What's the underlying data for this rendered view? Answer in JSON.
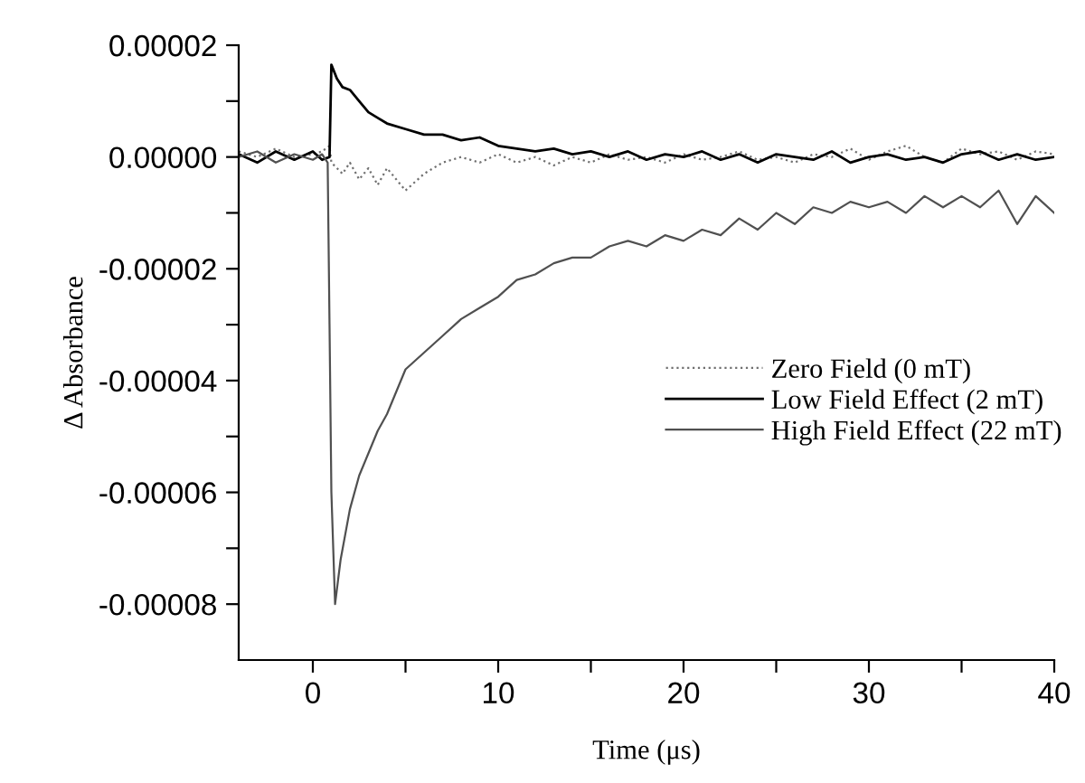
{
  "chart_data": {
    "type": "line",
    "xlabel": "Time (μs)",
    "ylabel": "Δ Absorbance",
    "xlim": [
      -4,
      40
    ],
    "ylim": [
      -9e-05,
      2e-05
    ],
    "xticks": [
      0,
      {
        "value": 5,
        "label": null
      },
      10,
      {
        "value": 15,
        "label": null
      },
      20,
      {
        "value": 25,
        "label": null
      },
      30,
      {
        "value": 35,
        "label": null
      },
      40
    ],
    "yticks": [
      {
        "value": -8e-05,
        "label": "-0.00008"
      },
      {
        "value": -7e-05,
        "label": null
      },
      {
        "value": -6e-05,
        "label": "-0.00006"
      },
      {
        "value": -5e-05,
        "label": null
      },
      {
        "value": -4e-05,
        "label": "-0.00004"
      },
      {
        "value": -3e-05,
        "label": null
      },
      {
        "value": -2e-05,
        "label": "-0.00002"
      },
      {
        "value": -1e-05,
        "label": null
      },
      {
        "value": 0,
        "label": "0.00000"
      },
      {
        "value": 1e-05,
        "label": null
      },
      {
        "value": 2e-05,
        "label": "0.00002"
      }
    ],
    "legend": "right",
    "grid": false,
    "series": [
      {
        "name": "Zero Field (0 mT)",
        "color": "#707070",
        "line_style": "dotted",
        "x": [
          -4,
          -3,
          -2,
          -1,
          0,
          0.5,
          0.9,
          1.0,
          1.3,
          1.6,
          2,
          2.5,
          3,
          3.5,
          4,
          5,
          6,
          7,
          8,
          9,
          10,
          11,
          12,
          13,
          14,
          15,
          16,
          17,
          18,
          19,
          20,
          21,
          22,
          23,
          24,
          25,
          26,
          27,
          28,
          29,
          30,
          31,
          32,
          33,
          34,
          35,
          36,
          37,
          38,
          39,
          40
        ],
        "values": [
          1e-06,
          0,
          1.5e-06,
          0,
          5e-07,
          1e-06,
          2e-06,
          -1e-06,
          -2e-06,
          -3e-06,
          -1e-06,
          -4e-06,
          -2e-06,
          -5e-06,
          -2e-06,
          -6e-06,
          -3e-06,
          -1e-06,
          0,
          -1e-06,
          5e-07,
          -1e-06,
          0,
          -1.5e-06,
          0,
          -1e-06,
          5e-07,
          -5e-07,
          0,
          -1e-06,
          5e-07,
          -5e-07,
          0,
          1e-06,
          -5e-07,
          0,
          -1e-06,
          5e-07,
          0,
          1.5e-06,
          -5e-07,
          1e-06,
          2e-06,
          0,
          -1e-06,
          1.5e-06,
          5e-07,
          1e-06,
          -5e-07,
          1e-06,
          5e-07
        ]
      },
      {
        "name": "Low Field Effect (2 mT)",
        "color": "#000000",
        "line_style": "solid",
        "x": [
          -4,
          -3,
          -2,
          -1,
          0,
          0.5,
          0.9,
          1.0,
          1.3,
          1.6,
          2,
          2.5,
          3,
          3.5,
          4,
          5,
          6,
          7,
          8,
          9,
          10,
          11,
          12,
          13,
          14,
          15,
          16,
          17,
          18,
          19,
          20,
          21,
          22,
          23,
          24,
          25,
          26,
          27,
          28,
          29,
          30,
          31,
          32,
          33,
          34,
          35,
          36,
          37,
          38,
          39,
          40
        ],
        "values": [
          5e-07,
          -1e-06,
          1e-06,
          -5e-07,
          1e-06,
          -5e-07,
          0,
          1.65e-05,
          1.4e-05,
          1.25e-05,
          1.2e-05,
          1e-05,
          8e-06,
          7e-06,
          6e-06,
          5e-06,
          4e-06,
          4e-06,
          3e-06,
          3.5e-06,
          2e-06,
          1.5e-06,
          1e-06,
          1.5e-06,
          5e-07,
          1e-06,
          0,
          1e-06,
          -5e-07,
          5e-07,
          0,
          1e-06,
          -5e-07,
          5e-07,
          -1e-06,
          5e-07,
          0,
          -5e-07,
          1e-06,
          -1e-06,
          0,
          5e-07,
          -5e-07,
          0,
          -1e-06,
          5e-07,
          1e-06,
          -5e-07,
          5e-07,
          -5e-07,
          0
        ]
      },
      {
        "name": "High Field Effect (22 mT)",
        "color": "#505050",
        "line_style": "solid",
        "x": [
          -4,
          -3,
          -2,
          -1,
          0,
          0.5,
          0.8,
          0.9,
          1.0,
          1.2,
          1.5,
          2,
          2.5,
          3,
          3.5,
          4,
          4.5,
          5,
          6,
          7,
          8,
          9,
          10,
          11,
          12,
          13,
          14,
          15,
          16,
          17,
          18,
          19,
          20,
          21,
          22,
          23,
          24,
          25,
          26,
          27,
          28,
          29,
          30,
          31,
          32,
          33,
          34,
          35,
          36,
          37,
          38,
          39,
          40
        ],
        "values": [
          0,
          1e-06,
          -1e-06,
          5e-07,
          -5e-07,
          5e-07,
          -1e-06,
          -3e-05,
          -6e-05,
          -8e-05,
          -7.2e-05,
          -6.3e-05,
          -5.7e-05,
          -5.3e-05,
          -4.9e-05,
          -4.6e-05,
          -4.2e-05,
          -3.8e-05,
          -3.5e-05,
          -3.2e-05,
          -2.9e-05,
          -2.7e-05,
          -2.5e-05,
          -2.2e-05,
          -2.1e-05,
          -1.9e-05,
          -1.8e-05,
          -1.8e-05,
          -1.6e-05,
          -1.5e-05,
          -1.6e-05,
          -1.4e-05,
          -1.5e-05,
          -1.3e-05,
          -1.4e-05,
          -1.1e-05,
          -1.3e-05,
          -1e-05,
          -1.2e-05,
          -9e-06,
          -1e-05,
          -8e-06,
          -9e-06,
          -8e-06,
          -1e-05,
          -7e-06,
          -9e-06,
          -7e-06,
          -9e-06,
          -6e-06,
          -1.2e-05,
          -7e-06,
          -1e-05
        ]
      }
    ]
  }
}
